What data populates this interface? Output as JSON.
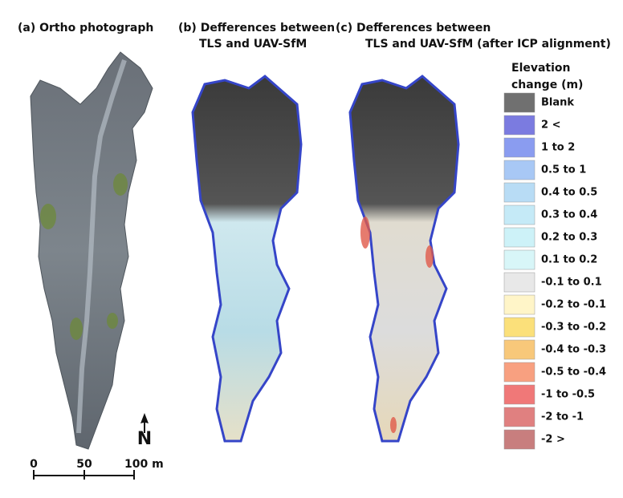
{
  "panels": [
    {
      "title_lines": [
        "(a)  Ortho photograph"
      ]
    },
    {
      "title_lines": [
        "(b)  Defferences between",
        "TLS and UAV-SfM"
      ]
    },
    {
      "title_lines": [
        "(c)  Defferences between",
        "TLS and UAV-SfM (after ICP alignment)"
      ]
    }
  ],
  "legend": {
    "title_lines": [
      "Elevation",
      "change (m)"
    ],
    "items": [
      {
        "label": "Blank",
        "color": "#707070"
      },
      {
        "label": "2 <",
        "color": "#7b7be0"
      },
      {
        "label": "1 to 2",
        "color": "#8a9cf0"
      },
      {
        "label": "0.5 to 1",
        "color": "#a8c8f5"
      },
      {
        "label": "0.4 to 0.5",
        "color": "#b8dcf5"
      },
      {
        "label": "0.3 to 0.4",
        "color": "#c5eaf7"
      },
      {
        "label": "0.2 to 0.3",
        "color": "#cdf2f8"
      },
      {
        "label": "0.1 to 0.2",
        "color": "#d8f6f8"
      },
      {
        "label": "-0.1 to 0.1",
        "color": "#e8e8e8"
      },
      {
        "label": "-0.2 to -0.1",
        "color": "#fff5c8"
      },
      {
        "label": "-0.3 to -0.2",
        "color": "#fbe07a"
      },
      {
        "label": "-0.4 to -0.3",
        "color": "#f8c87a"
      },
      {
        "label": "-0.5 to -0.4",
        "color": "#f8a080"
      },
      {
        "label": "-1 to -0.5",
        "color": "#f07878"
      },
      {
        "label": "-2 to -1",
        "color": "#e08080"
      },
      {
        "label": "-2 >",
        "color": "#c87e7e"
      }
    ]
  },
  "scale_bar": {
    "labels": [
      "0",
      "50",
      "100 m"
    ]
  },
  "north_arrow": {
    "label": "N"
  }
}
